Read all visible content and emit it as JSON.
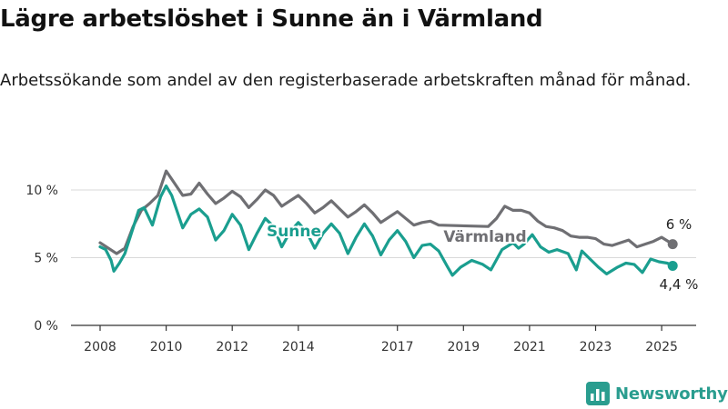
{
  "header": {
    "title": "Lägre arbetslöshet i Sunne än i Värmland",
    "subtitle": "Arbetssökande som andel av den registerbaserade arbetskraften månad för månad."
  },
  "brand": {
    "name": "Newsworthy",
    "icon": "bar-chart-logo-icon"
  },
  "colors": {
    "sunne": "#1a9e8f",
    "varmland": "#6f6f73",
    "grid": "#d9d9d9",
    "axis": "#333333"
  },
  "chart_data": {
    "type": "line",
    "title": "Lägre arbetslöshet i Sunne än i Värmland",
    "xlabel": "",
    "ylabel": "",
    "x_ticks": [
      "2008",
      "2010",
      "2012",
      "2014",
      "2017",
      "2019",
      "2021",
      "2023",
      "2025"
    ],
    "y_ticks": [
      {
        "value": 0,
        "label": "0 %"
      },
      {
        "value": 5,
        "label": "5 %"
      },
      {
        "value": 10,
        "label": "10 %"
      }
    ],
    "ylim": [
      0,
      10
    ],
    "xlim": [
      "2008-01",
      "2025-06"
    ],
    "grid": true,
    "legend": "inline labels",
    "series": [
      {
        "name": "Sunne",
        "end_label": "4,4 %",
        "points": [
          [
            "2008-01",
            5.8
          ],
          [
            "2008-03",
            5.6
          ],
          [
            "2008-05",
            4.8
          ],
          [
            "2008-06",
            4.0
          ],
          [
            "2008-08",
            4.6
          ],
          [
            "2008-10",
            5.3
          ],
          [
            "2009-01",
            7.2
          ],
          [
            "2009-03",
            8.5
          ],
          [
            "2009-05",
            8.7
          ],
          [
            "2009-08",
            7.4
          ],
          [
            "2009-11",
            9.5
          ],
          [
            "2010-01",
            10.3
          ],
          [
            "2010-03",
            9.6
          ],
          [
            "2010-05",
            8.4
          ],
          [
            "2010-07",
            7.2
          ],
          [
            "2010-10",
            8.2
          ],
          [
            "2011-01",
            8.6
          ],
          [
            "2011-04",
            8.0
          ],
          [
            "2011-07",
            6.3
          ],
          [
            "2011-10",
            7.0
          ],
          [
            "2012-01",
            8.2
          ],
          [
            "2012-04",
            7.4
          ],
          [
            "2012-07",
            5.6
          ],
          [
            "2012-10",
            6.8
          ],
          [
            "2013-01",
            7.9
          ],
          [
            "2013-04",
            7.3
          ],
          [
            "2013-07",
            5.8
          ],
          [
            "2013-10",
            6.9
          ],
          [
            "2014-01",
            7.6
          ],
          [
            "2014-04",
            6.9
          ],
          [
            "2014-07",
            5.7
          ],
          [
            "2014-10",
            6.8
          ],
          [
            "2015-01",
            7.5
          ],
          [
            "2015-04",
            6.8
          ],
          [
            "2015-07",
            5.3
          ],
          [
            "2015-10",
            6.5
          ],
          [
            "2016-01",
            7.5
          ],
          [
            "2016-04",
            6.6
          ],
          [
            "2016-07",
            5.2
          ],
          [
            "2016-10",
            6.3
          ],
          [
            "2017-01",
            7.0
          ],
          [
            "2017-04",
            6.2
          ],
          [
            "2017-07",
            5.0
          ],
          [
            "2017-10",
            5.9
          ],
          [
            "2018-01",
            6.0
          ],
          [
            "2018-04",
            5.5
          ],
          [
            "2018-07",
            4.4
          ],
          [
            "2018-09",
            3.7
          ],
          [
            "2018-12",
            4.3
          ],
          [
            "2019-04",
            4.8
          ],
          [
            "2019-08",
            4.5
          ],
          [
            "2019-11",
            4.1
          ],
          [
            "2020-03",
            5.6
          ],
          [
            "2020-07",
            6.1
          ],
          [
            "2020-09",
            5.7
          ],
          [
            "2020-11",
            6.0
          ],
          [
            "2021-02",
            6.7
          ],
          [
            "2021-05",
            5.8
          ],
          [
            "2021-08",
            5.4
          ],
          [
            "2021-11",
            5.6
          ],
          [
            "2022-03",
            5.3
          ],
          [
            "2022-06",
            4.1
          ],
          [
            "2022-08",
            5.5
          ],
          [
            "2022-11",
            4.9
          ],
          [
            "2023-02",
            4.3
          ],
          [
            "2023-05",
            3.8
          ],
          [
            "2023-09",
            4.3
          ],
          [
            "2023-12",
            4.6
          ],
          [
            "2024-03",
            4.5
          ],
          [
            "2024-06",
            3.9
          ],
          [
            "2024-09",
            4.9
          ],
          [
            "2024-12",
            4.7
          ],
          [
            "2025-03",
            4.6
          ],
          [
            "2025-05",
            4.4
          ]
        ]
      },
      {
        "name": "Värmland",
        "end_label": "6 %",
        "points": [
          [
            "2008-01",
            6.1
          ],
          [
            "2008-04",
            5.7
          ],
          [
            "2008-07",
            5.3
          ],
          [
            "2008-10",
            5.7
          ],
          [
            "2009-01",
            7.3
          ],
          [
            "2009-04",
            8.5
          ],
          [
            "2009-07",
            9.0
          ],
          [
            "2009-10",
            9.6
          ],
          [
            "2010-01",
            11.4
          ],
          [
            "2010-04",
            10.5
          ],
          [
            "2010-07",
            9.6
          ],
          [
            "2010-10",
            9.7
          ],
          [
            "2011-01",
            10.5
          ],
          [
            "2011-04",
            9.7
          ],
          [
            "2011-07",
            9.0
          ],
          [
            "2011-10",
            9.4
          ],
          [
            "2012-01",
            9.9
          ],
          [
            "2012-04",
            9.5
          ],
          [
            "2012-07",
            8.7
          ],
          [
            "2012-10",
            9.3
          ],
          [
            "2013-01",
            10.0
          ],
          [
            "2013-04",
            9.6
          ],
          [
            "2013-07",
            8.8
          ],
          [
            "2013-10",
            9.2
          ],
          [
            "2014-01",
            9.6
          ],
          [
            "2014-04",
            9.0
          ],
          [
            "2014-07",
            8.3
          ],
          [
            "2014-10",
            8.7
          ],
          [
            "2015-01",
            9.2
          ],
          [
            "2015-04",
            8.6
          ],
          [
            "2015-07",
            8.0
          ],
          [
            "2015-10",
            8.4
          ],
          [
            "2016-01",
            8.9
          ],
          [
            "2016-04",
            8.3
          ],
          [
            "2016-07",
            7.6
          ],
          [
            "2016-10",
            8.0
          ],
          [
            "2017-01",
            8.4
          ],
          [
            "2017-04",
            7.9
          ],
          [
            "2017-07",
            7.4
          ],
          [
            "2017-10",
            7.6
          ],
          [
            "2018-01",
            7.7
          ],
          [
            "2018-04",
            7.4
          ],
          [
            "2019-10",
            7.3
          ],
          [
            "2020-01",
            7.9
          ],
          [
            "2020-04",
            8.8
          ],
          [
            "2020-07",
            8.5
          ],
          [
            "2020-10",
            8.5
          ],
          [
            "2021-01",
            8.3
          ],
          [
            "2021-04",
            7.7
          ],
          [
            "2021-07",
            7.3
          ],
          [
            "2021-10",
            7.2
          ],
          [
            "2022-01",
            7.0
          ],
          [
            "2022-04",
            6.6
          ],
          [
            "2022-07",
            6.5
          ],
          [
            "2022-10",
            6.5
          ],
          [
            "2023-01",
            6.4
          ],
          [
            "2023-04",
            6.0
          ],
          [
            "2023-07",
            5.9
          ],
          [
            "2023-10",
            6.1
          ],
          [
            "2024-01",
            6.3
          ],
          [
            "2024-04",
            5.8
          ],
          [
            "2024-07",
            6.0
          ],
          [
            "2024-10",
            6.2
          ],
          [
            "2025-01",
            6.5
          ],
          [
            "2025-05",
            6.0
          ]
        ]
      }
    ],
    "series_labels": [
      {
        "series": "Sunne",
        "text": "Sunne"
      },
      {
        "series": "Värmland",
        "text": "Värmland"
      }
    ]
  }
}
